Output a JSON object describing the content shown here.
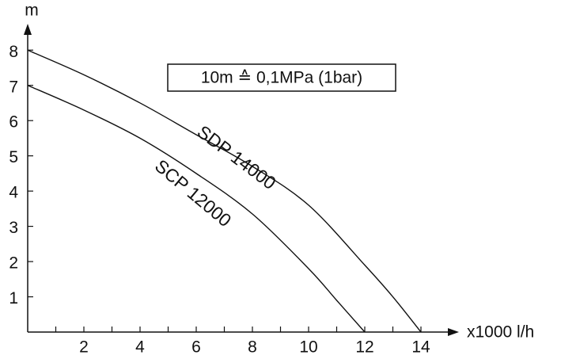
{
  "chart_data": {
    "type": "line",
    "x_label": "x1000 l/h",
    "y_label": "m",
    "annotation": "10m ≙ 0,1MPa (1bar)",
    "x": [
      0,
      2,
      4,
      6,
      8,
      10,
      12,
      13,
      14
    ],
    "series": [
      {
        "name": "SDP 14000",
        "color": "#111111",
        "values": [
          8,
          7.3,
          6.5,
          5.6,
          4.7,
          3.6,
          1.9,
          1.0,
          0
        ]
      },
      {
        "name": "SCP 12000",
        "color": "#111111",
        "values": [
          7,
          6.3,
          5.5,
          4.5,
          3.35,
          1.8,
          null,
          null,
          null
        ]
      }
    ],
    "series_x": [
      null,
      [
        0,
        2,
        4,
        6,
        8,
        10,
        11,
        12
      ]
    ],
    "series_extra_values": [
      null,
      [
        0.9,
        0
      ]
    ],
    "xlim": [
      0,
      15
    ],
    "ylim": [
      0,
      8.5
    ],
    "xticks": [
      2,
      4,
      6,
      8,
      10,
      12,
      14
    ],
    "yticks": [
      1,
      2,
      3,
      4,
      5,
      6,
      7,
      8
    ],
    "grid": false
  }
}
